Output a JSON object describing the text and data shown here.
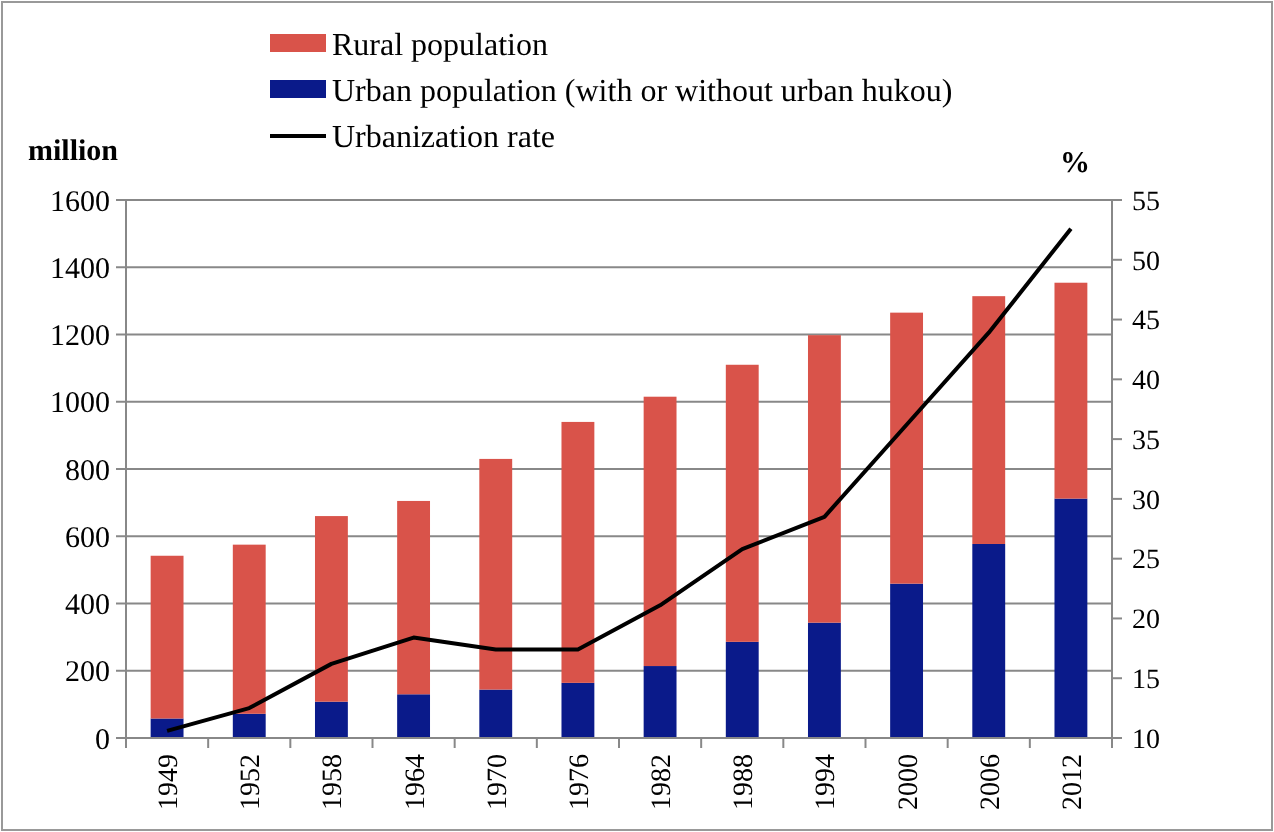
{
  "chart_data": {
    "type": "bar",
    "stacked": true,
    "ylabel": "million",
    "y2label": "%",
    "categories": [
      "1949",
      "1952",
      "1958",
      "1964",
      "1970",
      "1976",
      "1982",
      "1988",
      "1994",
      "2000",
      "2006",
      "2012"
    ],
    "series": [
      {
        "name": "Urban population (with or without urban hukou)",
        "color": "#0a1a8a",
        "values": [
          58,
          72,
          108,
          130,
          144,
          164,
          214,
          286,
          343,
          459,
          577,
          712
        ]
      },
      {
        "name": "Rural population",
        "color": "#d9534a",
        "values": [
          484,
          503,
          552,
          575,
          686,
          776,
          801,
          824,
          855,
          806,
          737,
          642
        ]
      },
      {
        "name": "Urbanization rate",
        "type": "line",
        "axis": "y2",
        "color": "#000000",
        "values": [
          10.6,
          12.5,
          16.2,
          18.4,
          17.4,
          17.4,
          21.1,
          25.8,
          28.5,
          36.2,
          43.9,
          52.6
        ]
      }
    ],
    "ylim": [
      0,
      1600
    ],
    "yticks": [
      0,
      200,
      400,
      600,
      800,
      1000,
      1200,
      1400,
      1600
    ],
    "y2lim": [
      10,
      55
    ],
    "y2ticks": [
      10,
      15,
      20,
      25,
      30,
      35,
      40,
      45,
      50,
      55
    ],
    "grid": "y",
    "legend": "top",
    "marker": "none",
    "line_style": "solid"
  }
}
